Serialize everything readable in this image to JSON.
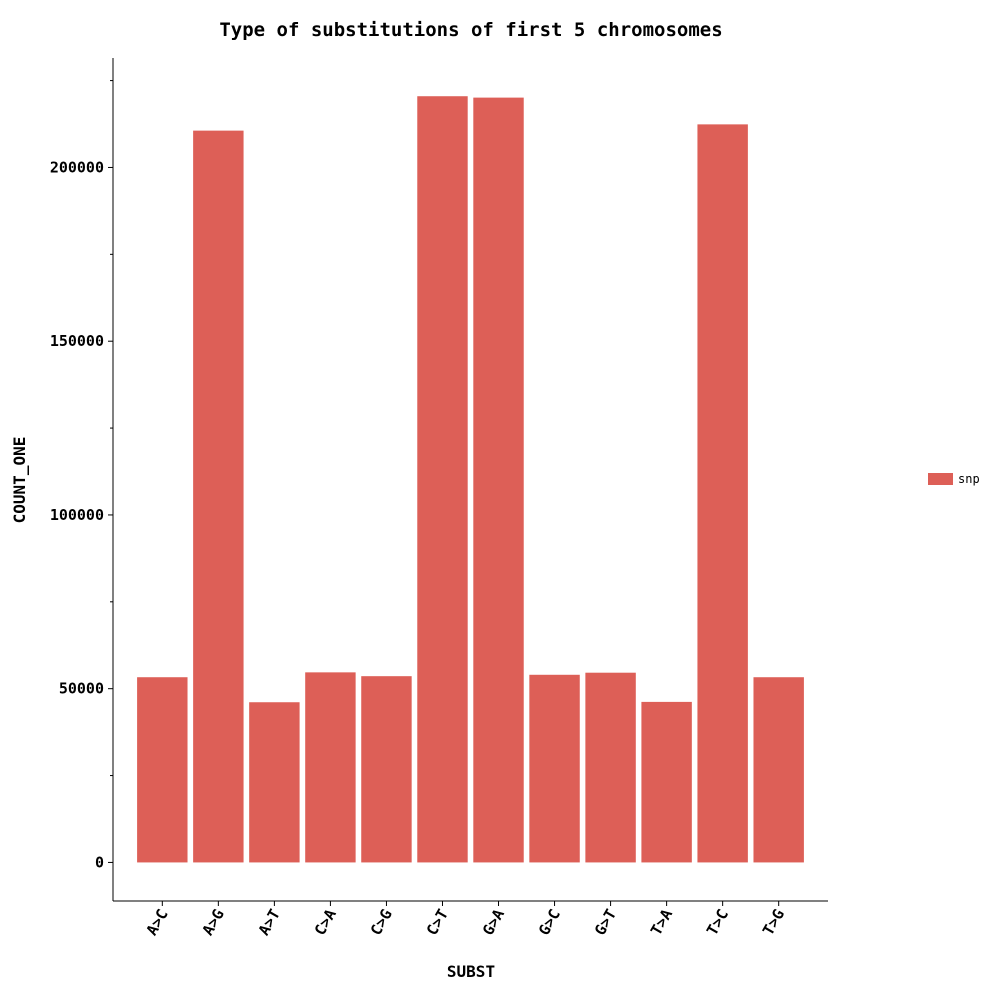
{
  "chart_data": {
    "type": "bar",
    "title": "Type of substitutions of first 5 chromosomes",
    "xlabel": "SUBST",
    "ylabel": "COUNT_ONE",
    "categories": [
      "A>C",
      "A>G",
      "A>T",
      "C>A",
      "C>G",
      "C>T",
      "G>A",
      "G>C",
      "G>T",
      "T>A",
      "T>C",
      "T>G"
    ],
    "series": [
      {
        "name": "snp",
        "color": "#dd5f57",
        "values": [
          53300,
          210600,
          46100,
          54700,
          53600,
          220500,
          220100,
          54000,
          54600,
          46200,
          212400,
          53300
        ]
      }
    ],
    "ylim": [
      -11100,
      231500
    ],
    "yticks": [
      0,
      50000,
      100000,
      150000,
      200000
    ],
    "yticks_minor": [
      25000,
      75000,
      125000,
      175000,
      225000
    ],
    "grid": false,
    "legend": {
      "placement": "right",
      "entries": [
        "snp"
      ]
    }
  }
}
